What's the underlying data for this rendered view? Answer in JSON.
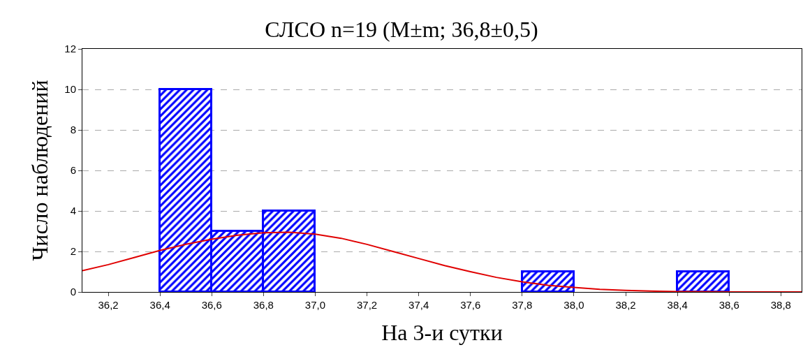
{
  "chart_data": {
    "type": "histogram",
    "title": "СЛСО n=19 (M±m; 36,8±0,5)",
    "xlabel": "На 3-и сутки",
    "ylabel": "Число наблюдений",
    "bins": [
      36.4,
      36.6,
      36.8,
      37.0,
      37.2,
      37.4,
      37.6,
      37.8,
      38.0,
      38.2,
      38.4,
      38.6
    ],
    "values": [
      10,
      3,
      4,
      0,
      0,
      0,
      0,
      1,
      0,
      0,
      1
    ],
    "color": "#0000ff",
    "series": [
      {
        "type": "line",
        "color": "#e00000",
        "marker": "none",
        "x": [
          36.1,
          36.2,
          36.3,
          36.4,
          36.5,
          36.6,
          36.7,
          36.8,
          36.9,
          37.0,
          37.1,
          37.2,
          37.3,
          37.4,
          37.5,
          37.6,
          37.7,
          37.8,
          37.9,
          38.0,
          38.1,
          38.2,
          38.3,
          38.4,
          38.6,
          38.88
        ],
        "values": [
          1.05,
          1.35,
          1.7,
          2.05,
          2.35,
          2.6,
          2.8,
          2.92,
          2.95,
          2.85,
          2.65,
          2.35,
          2.0,
          1.65,
          1.3,
          1.0,
          0.72,
          0.5,
          0.33,
          0.22,
          0.13,
          0.08,
          0.04,
          0.02,
          0.0,
          0.0
        ]
      }
    ],
    "xlim": [
      36.1,
      38.88
    ],
    "xticks": [
      {
        "value": 36.2,
        "label": "36,2"
      },
      {
        "value": 36.4,
        "label": "36,4"
      },
      {
        "value": 36.6,
        "label": "36,6"
      },
      {
        "value": 36.8,
        "label": "36,8"
      },
      {
        "value": 37.0,
        "label": "37,0"
      },
      {
        "value": 37.2,
        "label": "37,2"
      },
      {
        "value": 37.4,
        "label": "37,4"
      },
      {
        "value": 37.6,
        "label": "37,6"
      },
      {
        "value": 37.8,
        "label": "37,8"
      },
      {
        "value": 38.0,
        "label": "38,0"
      },
      {
        "value": 38.2,
        "label": "38,2"
      },
      {
        "value": 38.4,
        "label": "38,4"
      },
      {
        "value": 38.6,
        "label": "38,6"
      },
      {
        "value": 38.8,
        "label": "38,8"
      }
    ],
    "ylim": [
      0,
      12
    ],
    "yticks": [
      0,
      2,
      4,
      6,
      8,
      10,
      12
    ],
    "grid": "y"
  }
}
